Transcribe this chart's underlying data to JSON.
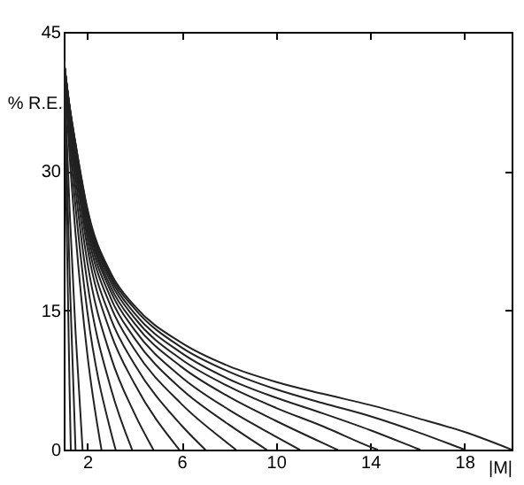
{
  "chart_data": {
    "type": "line",
    "xlabel": "|M|",
    "ylabel": "% R.E.",
    "xlim": [
      1,
      20
    ],
    "ylim": [
      0,
      45
    ],
    "xticks": [
      2,
      6,
      10,
      14,
      18
    ],
    "yticks": [
      0,
      15,
      30,
      45
    ],
    "grid": false,
    "marker": "none",
    "line_style": "solid",
    "series": [
      {
        "color": "#222222",
        "x": [
          1,
          1.25,
          1.3
        ],
        "values": [
          42,
          6.3,
          0
        ]
      },
      {
        "color": "#222222",
        "x": [
          1,
          1.25,
          1.5
        ],
        "values": [
          42,
          18.8,
          0
        ]
      },
      {
        "color": "#222222",
        "x": [
          1,
          1.25,
          1.5,
          1.8
        ],
        "values": [
          42,
          25.8,
          12.7,
          0
        ]
      },
      {
        "color": "#222222",
        "x": [
          1,
          1.25,
          1.5,
          2,
          2.6
        ],
        "values": [
          42,
          31.6,
          23.3,
          10.3,
          0
        ]
      },
      {
        "color": "#222222",
        "x": [
          1,
          1.25,
          1.5,
          2,
          3,
          3.2
        ],
        "values": [
          42,
          33.2,
          26.2,
          14.9,
          1.9,
          0
        ]
      },
      {
        "color": "#222222",
        "x": [
          1,
          1.25,
          1.5,
          2,
          3,
          3.9
        ],
        "values": [
          42,
          34.3,
          28.1,
          18.0,
          6.6,
          0
        ]
      },
      {
        "color": "#222222",
        "x": [
          1,
          1.25,
          1.5,
          2,
          3,
          4,
          4.8
        ],
        "values": [
          42,
          35.0,
          29.4,
          20.2,
          10.0,
          3.9,
          0
        ]
      },
      {
        "color": "#222222",
        "x": [
          1,
          1.25,
          1.5,
          2,
          3,
          4,
          5.9
        ],
        "values": [
          42,
          35.6,
          30.4,
          21.8,
          12.5,
          7.1,
          0
        ]
      },
      {
        "color": "#222222",
        "x": [
          1,
          1.25,
          1.5,
          2,
          3,
          4,
          6,
          7
        ],
        "values": [
          42,
          35.9,
          31.1,
          22.8,
          14.1,
          9.2,
          2.6,
          0
        ]
      },
      {
        "color": "#222222",
        "x": [
          1,
          1.25,
          1.5,
          2,
          3,
          4,
          6,
          8,
          8.3
        ],
        "values": [
          42,
          36.2,
          31.6,
          23.6,
          15.4,
          10.8,
          4.9,
          0.6,
          0
        ]
      },
      {
        "color": "#222222",
        "x": [
          1,
          1.25,
          1.5,
          2,
          3,
          4,
          6,
          8,
          9.6
        ],
        "values": [
          42,
          36.4,
          31.9,
          24.2,
          16.3,
          12.0,
          6.5,
          2.7,
          0
        ]
      },
      {
        "color": "#222222",
        "x": [
          1,
          1.25,
          1.5,
          2,
          3,
          4,
          6,
          8,
          10,
          11
        ],
        "values": [
          42,
          36.6,
          32.2,
          24.7,
          17.0,
          12.9,
          7.8,
          4.3,
          1.4,
          0
        ]
      },
      {
        "color": "#222222",
        "x": [
          1,
          1.25,
          1.5,
          2,
          3,
          4,
          6,
          8,
          10,
          12,
          12.6
        ],
        "values": [
          42,
          36.7,
          32.4,
          25.0,
          17.5,
          13.6,
          8.9,
          5.7,
          3.1,
          0.7,
          0
        ]
      },
      {
        "color": "#222222",
        "x": [
          1,
          1.25,
          1.5,
          2,
          3,
          4,
          6,
          8,
          10,
          12,
          14,
          14.3
        ],
        "values": [
          42,
          36.8,
          32.6,
          25.3,
          18.0,
          14.2,
          9.7,
          6.8,
          4.5,
          2.5,
          0.3,
          0
        ]
      },
      {
        "color": "#222222",
        "x": [
          1,
          1.25,
          1.5,
          2,
          3,
          4,
          6,
          8,
          10,
          12,
          14,
          16,
          16.1
        ],
        "values": [
          42,
          36.9,
          32.8,
          25.6,
          18.4,
          14.7,
          10.4,
          7.6,
          5.6,
          3.9,
          2.1,
          0.1,
          0
        ]
      },
      {
        "color": "#222222",
        "x": [
          1,
          1.25,
          1.5,
          2,
          3,
          4,
          6,
          8,
          10,
          12,
          14,
          16,
          18
        ],
        "values": [
          42,
          36.9,
          32.9,
          25.8,
          18.7,
          15.2,
          11.0,
          8.4,
          6.5,
          5.0,
          3.6,
          1.9,
          0
        ]
      },
      {
        "color": "#222222",
        "x": [
          1,
          1.25,
          1.5,
          2,
          3,
          4,
          6,
          8,
          10,
          12,
          14,
          16,
          18,
          20
        ],
        "values": [
          42,
          37,
          33,
          26,
          19,
          15.5,
          11.5,
          9,
          7.3,
          6,
          4.8,
          3.4,
          1.9,
          0
        ]
      }
    ]
  }
}
